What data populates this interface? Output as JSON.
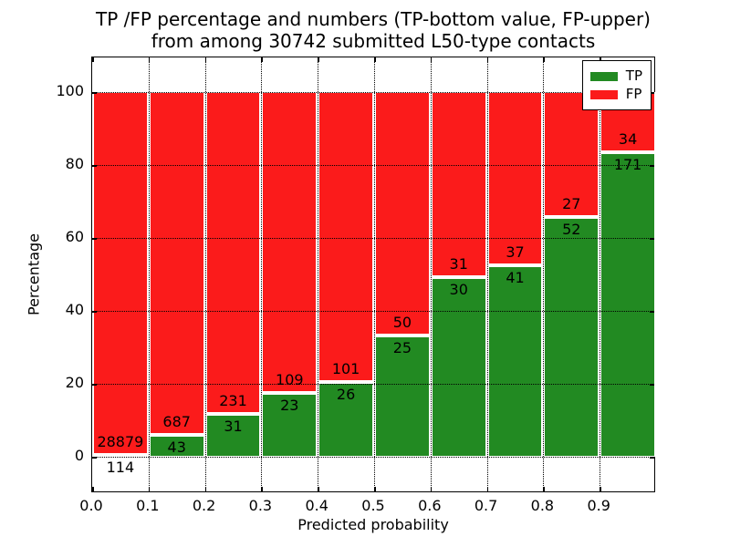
{
  "title": {
    "line1": "TP /FP percentage and numbers (TP-bottom value, FP-upper)",
    "line2": "from among 30742 submitted L50-type contacts"
  },
  "axes": {
    "xlabel": "Predicted probability",
    "ylabel": "Percentage",
    "xtick_labels": [
      "0.0",
      "0.1",
      "0.2",
      "0.3",
      "0.4",
      "0.5",
      "0.6",
      "0.7",
      "0.8",
      "0.9"
    ],
    "ytick_labels": [
      "0",
      "20",
      "40",
      "60",
      "80",
      "100"
    ],
    "ytick_values": [
      0,
      20,
      40,
      60,
      80,
      100
    ]
  },
  "legend": {
    "items": [
      {
        "label": "TP",
        "color": "#228a22"
      },
      {
        "label": "FP",
        "color": "#fb1b1b"
      }
    ]
  },
  "colors": {
    "tp": "#228a22",
    "fp": "#fb1b1b",
    "grid": "#000000",
    "background": "#ffffff"
  },
  "chart_data": {
    "type": "bar",
    "subtype": "stacked-percentage-histogram",
    "title": "TP /FP percentage and numbers (TP-bottom value, FP-upper) from among 30742 submitted L50-type contacts",
    "xlabel": "Predicted probability",
    "ylabel": "Percentage",
    "xlim": [
      0.0,
      1.0
    ],
    "ylim": [
      -10,
      109.5
    ],
    "grid": "dotted",
    "legend_position": "upper-right",
    "total_submitted": 30742,
    "bin_width": 0.1,
    "bin_starts": [
      0.0,
      0.1,
      0.2,
      0.3,
      0.4,
      0.5,
      0.6,
      0.7,
      0.8,
      0.9
    ],
    "series": [
      {
        "name": "TP",
        "color": "#228a22",
        "counts": [
          114,
          43,
          31,
          23,
          26,
          25,
          30,
          41,
          52,
          171
        ],
        "pct": [
          0.39,
          5.89,
          11.83,
          17.42,
          20.47,
          33.33,
          49.18,
          52.56,
          65.82,
          83.41
        ]
      },
      {
        "name": "FP",
        "color": "#fb1b1b",
        "counts": [
          28879,
          687,
          231,
          109,
          101,
          50,
          31,
          37,
          27,
          34
        ],
        "pct": [
          99.61,
          94.11,
          88.17,
          82.58,
          79.53,
          66.67,
          50.82,
          47.44,
          34.18,
          16.59
        ]
      }
    ]
  }
}
